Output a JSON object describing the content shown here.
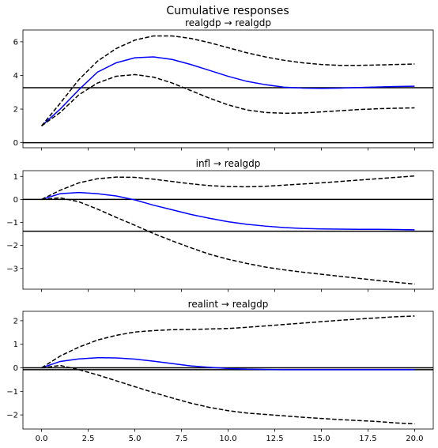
{
  "chart_data": {
    "type": "line",
    "title": "Cumulative responses",
    "x": [
      0,
      1,
      2,
      3,
      4,
      5,
      6,
      7,
      8,
      9,
      10,
      11,
      12,
      13,
      14,
      15,
      16,
      17,
      18,
      19,
      20
    ],
    "xlim": [
      -1,
      21
    ],
    "xticks": [
      "0.0",
      "2.5",
      "5.0",
      "7.5",
      "10.0",
      "12.5",
      "15.0",
      "17.5",
      "20.0"
    ],
    "colors": {
      "response": "#0000ff",
      "band": "#000000",
      "hline": "#000000"
    },
    "panels": [
      {
        "title": "realgdp → realgdp",
        "ylim": [
          -0.3,
          6.7
        ],
        "yticks": [
          "0",
          "2",
          "4",
          "6"
        ],
        "hlines": [
          0,
          3.27
        ],
        "series": [
          {
            "role": "response",
            "values": [
              1.0,
              2.0,
              3.15,
              4.2,
              4.75,
              5.05,
              5.1,
              4.95,
              4.65,
              4.3,
              3.95,
              3.65,
              3.45,
              3.3,
              3.25,
              3.23,
              3.25,
              3.28,
              3.31,
              3.34,
              3.36
            ]
          },
          {
            "role": "upper",
            "values": [
              1.0,
              2.35,
              3.75,
              4.85,
              5.6,
              6.1,
              6.35,
              6.35,
              6.2,
              5.95,
              5.65,
              5.35,
              5.1,
              4.9,
              4.75,
              4.65,
              4.6,
              4.6,
              4.62,
              4.65,
              4.68
            ]
          },
          {
            "role": "lower",
            "values": [
              1.0,
              1.8,
              2.85,
              3.55,
              3.95,
              4.05,
              3.9,
              3.55,
              3.1,
              2.65,
              2.25,
              1.95,
              1.8,
              1.75,
              1.77,
              1.83,
              1.9,
              1.97,
              2.02,
              2.05,
              2.07
            ]
          }
        ]
      },
      {
        "title": "infl → realgdp",
        "ylim": [
          -3.9,
          1.25
        ],
        "yticks": [
          "1",
          "0",
          "−1",
          "−2",
          "−3"
        ],
        "hlines": [
          0,
          -1.38
        ],
        "series": [
          {
            "role": "response",
            "values": [
              0.0,
              0.25,
              0.3,
              0.25,
              0.15,
              -0.02,
              -0.25,
              -0.45,
              -0.65,
              -0.82,
              -0.97,
              -1.08,
              -1.16,
              -1.22,
              -1.26,
              -1.28,
              -1.29,
              -1.3,
              -1.3,
              -1.31,
              -1.32
            ]
          },
          {
            "role": "upper",
            "values": [
              0.0,
              0.4,
              0.72,
              0.9,
              0.97,
              0.96,
              0.88,
              0.78,
              0.68,
              0.6,
              0.56,
              0.55,
              0.57,
              0.62,
              0.67,
              0.72,
              0.78,
              0.84,
              0.9,
              0.96,
              1.02
            ]
          },
          {
            "role": "lower",
            "values": [
              0.0,
              0.07,
              -0.1,
              -0.42,
              -0.78,
              -1.12,
              -1.48,
              -1.8,
              -2.1,
              -2.38,
              -2.6,
              -2.78,
              -2.94,
              -3.06,
              -3.16,
              -3.25,
              -3.34,
              -3.43,
              -3.52,
              -3.6,
              -3.68
            ]
          }
        ]
      },
      {
        "title": "realint → realgdp",
        "ylim": [
          -2.6,
          2.4
        ],
        "yticks": [
          "2",
          "1",
          "0",
          "−1",
          "−2"
        ],
        "hlines": [
          0,
          -0.08
        ],
        "series": [
          {
            "role": "response",
            "values": [
              0.0,
              0.27,
              0.38,
              0.43,
              0.42,
              0.37,
              0.28,
              0.18,
              0.08,
              0.02,
              -0.03,
              -0.06,
              -0.07,
              -0.08,
              -0.08,
              -0.08,
              -0.08,
              -0.08,
              -0.08,
              -0.08,
              -0.08
            ]
          },
          {
            "role": "upper",
            "values": [
              0.0,
              0.5,
              0.88,
              1.18,
              1.38,
              1.52,
              1.58,
              1.62,
              1.63,
              1.65,
              1.67,
              1.72,
              1.78,
              1.84,
              1.9,
              1.96,
              2.02,
              2.07,
              2.12,
              2.17,
              2.2
            ]
          },
          {
            "role": "lower",
            "values": [
              0.0,
              0.1,
              -0.08,
              -0.3,
              -0.55,
              -0.8,
              -1.05,
              -1.28,
              -1.5,
              -1.68,
              -1.82,
              -1.92,
              -1.98,
              -2.04,
              -2.1,
              -2.15,
              -2.2,
              -2.24,
              -2.28,
              -2.34,
              -2.38
            ]
          }
        ]
      }
    ]
  }
}
